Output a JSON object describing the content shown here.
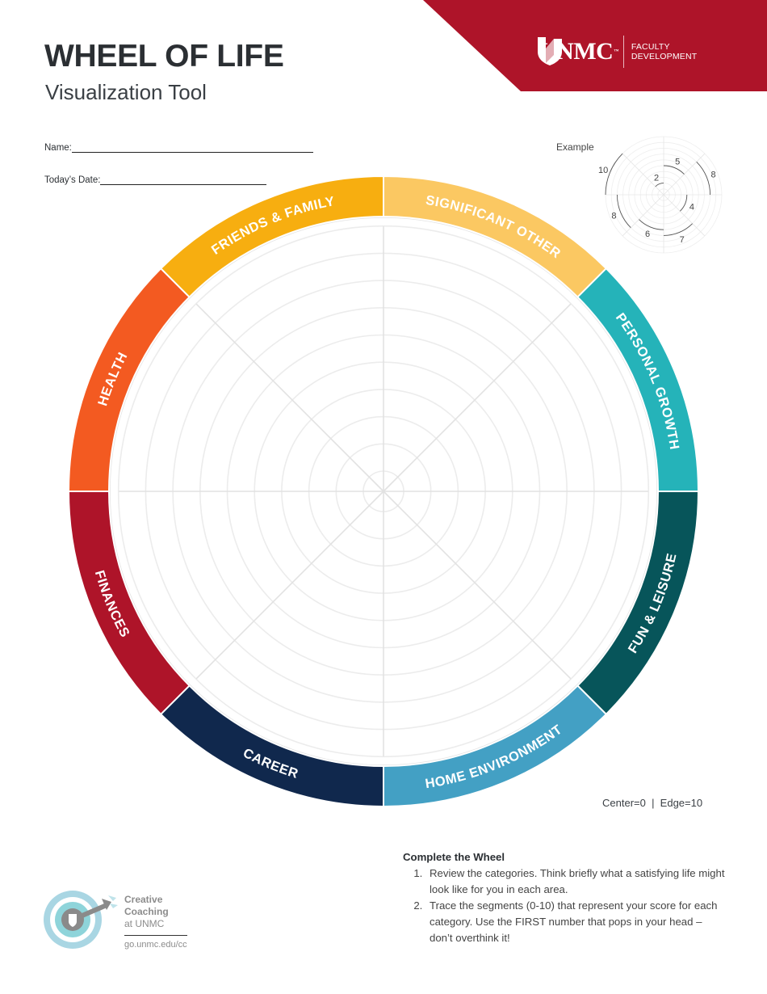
{
  "header": {
    "title": "WHEEL OF LIFE",
    "subtitle": "Visualization Tool",
    "brand_color": "#AE1429",
    "logo": {
      "wordmark": "UNMC",
      "trademark": "™",
      "line1": "FACULTY",
      "line2": "DEVELOPMENT",
      "icon": "unmc-shield-icon"
    }
  },
  "form": {
    "name_label": "Name:",
    "name_value": "",
    "date_label": "Today’s Date:",
    "date_value": ""
  },
  "wheel": {
    "center_value": 0,
    "edge_value": 10,
    "rings": 10,
    "categories": [
      {
        "label": "SIGNIFICANT OTHER",
        "color": "#FBC862",
        "score": null
      },
      {
        "label": "PERSONAL GROWTH",
        "color": "#25B3B9",
        "score": null
      },
      {
        "label": "FUN & LEISURE",
        "color": "#07555A",
        "score": null
      },
      {
        "label": "HOME ENVIRONMENT",
        "color": "#43A0C4",
        "score": null
      },
      {
        "label": "CAREER",
        "color": "#10284D",
        "score": null
      },
      {
        "label": "FINANCES",
        "color": "#AE1429",
        "score": null
      },
      {
        "label": "HEALTH",
        "color": "#F35A21",
        "score": null
      },
      {
        "label": "FRIENDS & FAMILY",
        "color": "#F7AE10",
        "score": null
      }
    ],
    "scale_note": "Center=0  |  Edge=10"
  },
  "example": {
    "label": "Example",
    "scores": [
      {
        "label": "5",
        "value": 5
      },
      {
        "label": "8",
        "value": 8
      },
      {
        "label": "4",
        "value": 4
      },
      {
        "label": "7",
        "value": 7
      },
      {
        "label": "6",
        "value": 6
      },
      {
        "label": "8",
        "value": 8
      },
      {
        "label": "10",
        "value": 10
      },
      {
        "label": "2",
        "value": 2
      }
    ]
  },
  "instructions": {
    "heading": "Complete the Wheel",
    "steps": [
      "Review the categories. Think briefly what a satisfying life might look like for you in each area.",
      "Trace the segments (0-10) that represent your score for each category. Use the FIRST number that pops in your head – don’t overthink it!"
    ]
  },
  "footer": {
    "coaching_line1": "Creative",
    "coaching_line2": "Coaching",
    "coaching_line3": "at UNMC",
    "url": "go.unmc.edu/cc",
    "icon": "target-arrow-icon"
  }
}
